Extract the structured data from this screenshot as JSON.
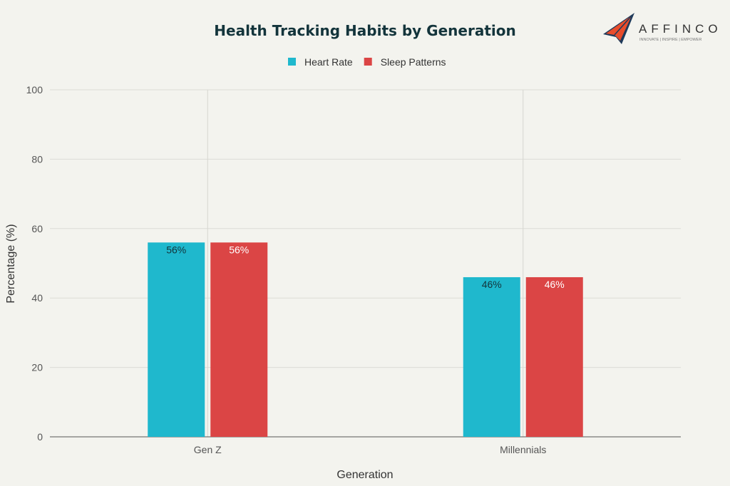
{
  "chart_data": {
    "type": "bar",
    "title": "Health Tracking Habits by Generation",
    "xlabel": "Generation",
    "ylabel": "Percentage (%)",
    "categories": [
      "Gen Z",
      "Millennials"
    ],
    "series": [
      {
        "name": "Heart Rate",
        "values": [
          56,
          46
        ],
        "color": "#1fb8cd",
        "labels": [
          "56%",
          "46%"
        ],
        "label_color": "#13343b"
      },
      {
        "name": "Sleep Patterns",
        "values": [
          56,
          46
        ],
        "color": "#db4545",
        "labels": [
          "56%",
          "46%"
        ],
        "label_color": "#ffffff"
      }
    ],
    "ylim": [
      0,
      100
    ],
    "yticks": [
      0,
      20,
      40,
      60,
      80,
      100
    ],
    "grid": true,
    "legend": "top-center"
  },
  "logo": {
    "name": "AFFINCO",
    "tagline": "INNOVATE | INSPIRE | EMPOWER"
  }
}
